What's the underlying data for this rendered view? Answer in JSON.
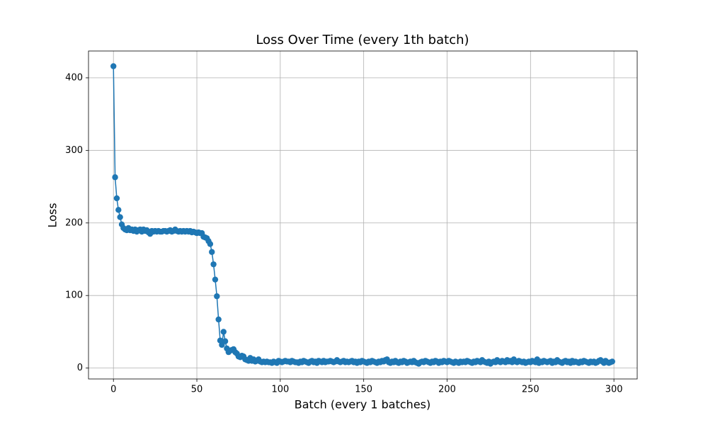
{
  "chart_data": {
    "type": "line",
    "title": "Loss Over Time (every 1th batch)",
    "x_label": "Batch (every 1 batches)",
    "y_label": "Loss",
    "color": "#1f77b4",
    "grid": true,
    "xlim": [
      -14.95,
      313.95
    ],
    "ylim": [
      -15,
      437
    ],
    "xticks": [
      0,
      50,
      100,
      150,
      200,
      250,
      300
    ],
    "yticks": [
      0,
      100,
      200,
      300,
      400
    ],
    "x": [
      0,
      1,
      2,
      3,
      4,
      5,
      6,
      7,
      8,
      9,
      10,
      11,
      12,
      13,
      14,
      15,
      16,
      17,
      18,
      19,
      20,
      21,
      22,
      23,
      24,
      25,
      26,
      27,
      28,
      29,
      30,
      31,
      32,
      33,
      34,
      35,
      36,
      37,
      38,
      39,
      40,
      41,
      42,
      43,
      44,
      45,
      46,
      47,
      48,
      49,
      50,
      51,
      52,
      53,
      54,
      55,
      56,
      57,
      58,
      59,
      60,
      61,
      62,
      63,
      64,
      65,
      66,
      67,
      68,
      69,
      70,
      71,
      72,
      73,
      74,
      75,
      76,
      77,
      78,
      79,
      80,
      81,
      82,
      83,
      84,
      85,
      86,
      87,
      88,
      89,
      90,
      91,
      92,
      93,
      94,
      95,
      96,
      97,
      98,
      99,
      100,
      101,
      102,
      103,
      104,
      105,
      106,
      107,
      108,
      109,
      110,
      111,
      112,
      113,
      114,
      115,
      116,
      117,
      118,
      119,
      120,
      121,
      122,
      123,
      124,
      125,
      126,
      127,
      128,
      129,
      130,
      131,
      132,
      133,
      134,
      135,
      136,
      137,
      138,
      139,
      140,
      141,
      142,
      143,
      144,
      145,
      146,
      147,
      148,
      149,
      150,
      151,
      152,
      153,
      154,
      155,
      156,
      157,
      158,
      159,
      160,
      161,
      162,
      163,
      164,
      165,
      166,
      167,
      168,
      169,
      170,
      171,
      172,
      173,
      174,
      175,
      176,
      177,
      178,
      179,
      180,
      181,
      182,
      183,
      184,
      185,
      186,
      187,
      188,
      189,
      190,
      191,
      192,
      193,
      194,
      195,
      196,
      197,
      198,
      199,
      200,
      201,
      202,
      203,
      204,
      205,
      206,
      207,
      208,
      209,
      210,
      211,
      212,
      213,
      214,
      215,
      216,
      217,
      218,
      219,
      220,
      221,
      222,
      223,
      224,
      225,
      226,
      227,
      228,
      229,
      230,
      231,
      232,
      233,
      234,
      235,
      236,
      237,
      238,
      239,
      240,
      241,
      242,
      243,
      244,
      245,
      246,
      247,
      248,
      249,
      250,
      251,
      252,
      253,
      254,
      255,
      256,
      257,
      258,
      259,
      260,
      261,
      262,
      263,
      264,
      265,
      266,
      267,
      268,
      269,
      270,
      271,
      272,
      273,
      274,
      275,
      276,
      277,
      278,
      279,
      280,
      281,
      282,
      283,
      284,
      285,
      286,
      287,
      288,
      289,
      290,
      291,
      292,
      293,
      294,
      295,
      296,
      297,
      298,
      299
    ],
    "values": [
      416,
      263,
      234,
      218,
      208,
      198,
      193,
      191,
      190,
      193,
      190,
      191,
      189,
      191,
      188,
      190,
      191,
      188,
      191,
      189,
      190,
      187,
      185,
      189,
      188,
      189,
      188,
      189,
      188,
      188,
      189,
      189,
      188,
      189,
      190,
      188,
      189,
      191,
      189,
      188,
      189,
      188,
      189,
      188,
      189,
      188,
      189,
      187,
      188,
      187,
      186,
      187,
      186,
      186,
      181,
      180,
      179,
      175,
      171,
      160,
      143,
      122,
      99,
      67,
      38,
      32,
      50,
      37,
      27,
      22,
      24,
      25,
      26,
      22,
      20,
      16,
      15,
      17,
      16,
      12,
      11,
      10,
      14,
      10,
      12,
      9,
      10,
      12,
      9,
      8,
      9,
      8,
      9,
      8,
      8,
      7,
      9,
      8,
      7,
      10,
      9,
      8,
      9,
      10,
      9,
      9,
      8,
      10,
      9,
      8,
      8,
      7,
      9,
      8,
      10,
      9,
      8,
      7,
      9,
      10,
      8,
      9,
      7,
      10,
      9,
      8,
      10,
      8,
      9,
      9,
      10,
      9,
      8,
      9,
      11,
      9,
      8,
      9,
      10,
      8,
      9,
      8,
      9,
      10,
      8,
      9,
      7,
      9,
      8,
      10,
      9,
      8,
      7,
      9,
      8,
      10,
      9,
      8,
      7,
      9,
      8,
      10,
      9,
      11,
      12,
      8,
      7,
      9,
      8,
      10,
      8,
      7,
      9,
      8,
      10,
      9,
      7,
      8,
      9,
      8,
      10,
      8,
      7,
      6,
      8,
      9,
      8,
      10,
      9,
      8,
      7,
      9,
      8,
      10,
      9,
      7,
      9,
      8,
      10,
      9,
      8,
      10,
      9,
      8,
      7,
      9,
      8,
      7,
      9,
      8,
      9,
      8,
      10,
      9,
      8,
      7,
      9,
      8,
      10,
      9,
      8,
      11,
      9,
      8,
      7,
      9,
      6,
      8,
      9,
      8,
      11,
      9,
      8,
      10,
      9,
      8,
      11,
      9,
      10,
      8,
      12,
      9,
      8,
      10,
      9,
      8,
      9,
      7,
      8,
      9,
      8,
      10,
      9,
      8,
      12,
      7,
      9,
      8,
      10,
      9,
      8,
      9,
      10,
      7,
      9,
      8,
      11,
      9,
      8,
      7,
      9,
      10,
      8,
      9,
      7,
      10,
      8,
      9,
      8,
      7,
      9,
      8,
      10,
      9,
      8,
      7,
      9,
      8,
      9,
      7,
      8,
      10,
      11,
      9,
      7,
      10,
      8,
      7,
      8,
      9
    ]
  }
}
